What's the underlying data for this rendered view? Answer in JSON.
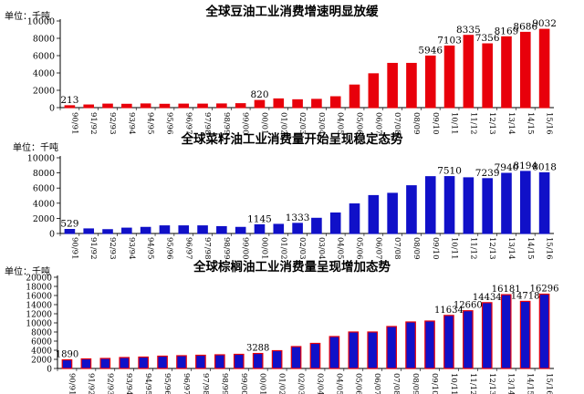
{
  "chart_data": [
    {
      "type": "bar",
      "title": "全球豆油工业消费增速明显放缓",
      "unit_label": "单位：千吨",
      "categories": [
        "90/91",
        "91/92",
        "92/93",
        "93/94",
        "94/95",
        "95/96",
        "96/97",
        "97/98",
        "98/99",
        "99/00",
        "00/01",
        "01/02",
        "02/03",
        "03/04",
        "04/05",
        "05/06",
        "06/07",
        "07/08",
        "08/09",
        "09/10",
        "10/11",
        "11/12",
        "12/13",
        "13/14",
        "14/15",
        "15/16"
      ],
      "values": [
        213,
        300,
        400,
        380,
        420,
        380,
        400,
        400,
        420,
        450,
        820,
        1000,
        900,
        950,
        1250,
        2600,
        3900,
        5100,
        5100,
        5946,
        7103,
        8335,
        7356,
        8169,
        8686,
        9032
      ],
      "data_labels": {
        "0": "213",
        "10": "820",
        "19": "5946",
        "20": "7103",
        "21": "8335",
        "22": "7356",
        "23": "8169",
        "24": "8686",
        "25": "9032"
      },
      "yticks": [
        0,
        2000,
        4000,
        6000,
        8000,
        10000
      ],
      "ylim": [
        0,
        10000
      ],
      "bar_color": "#e8000b",
      "bar_stroke": "#e8000b"
    },
    {
      "type": "bar",
      "title": "全球菜籽油工业消费量开始呈现稳定态势",
      "unit_label": "单位：千吨",
      "categories": [
        "90/91",
        "91/92",
        "92/93",
        "93/94",
        "94/95",
        "95/96",
        "96/97",
        "97/98",
        "98/99",
        "99/00",
        "00/01",
        "01/02",
        "02/03",
        "03/04",
        "04/05",
        "05/06",
        "06/07",
        "07/08",
        "08/09",
        "09/10",
        "10/11",
        "11/12",
        "12/13",
        "13/14",
        "14/15",
        "15/16"
      ],
      "values": [
        529,
        600,
        500,
        700,
        800,
        1000,
        1000,
        1000,
        900,
        800,
        1145,
        1200,
        1333,
        2000,
        2700,
        3900,
        5000,
        5300,
        6300,
        7500,
        7510,
        7350,
        7239,
        7940,
        8194,
        8018
      ],
      "data_labels": {
        "0": "529",
        "10": "1145",
        "12": "1333",
        "20": "7510",
        "22": "7239",
        "23": "7940",
        "24": "8194",
        "25": "8018"
      },
      "yticks": [
        0,
        2000,
        4000,
        6000,
        8000,
        10000
      ],
      "ylim": [
        0,
        10000
      ],
      "bar_color": "#1010c8",
      "bar_stroke": "#1010c8"
    },
    {
      "type": "bar",
      "title": "全球棕榈油工业消费量呈现增加态势",
      "unit_label": "单位：千吨",
      "categories": [
        "90/91",
        "91/92",
        "92/93",
        "93/94",
        "94/95",
        "95/96",
        "96/97",
        "97/98",
        "98/99",
        "99/00",
        "00/01",
        "01/02",
        "02/03",
        "03/04",
        "04/05",
        "05/06",
        "06/07",
        "07/08",
        "08/09",
        "09/10",
        "10/11",
        "11/12",
        "12/13",
        "13/14",
        "14/15",
        "15/16"
      ],
      "values": [
        1890,
        2100,
        2200,
        2400,
        2500,
        2700,
        2800,
        2900,
        3000,
        3100,
        3288,
        3900,
        4800,
        5500,
        7000,
        8000,
        8000,
        9200,
        10200,
        10400,
        11634,
        12660,
        14434,
        16181,
        14718,
        16296
      ],
      "data_labels": {
        "0": "1890",
        "10": "3288",
        "20": "11634",
        "21": "12660",
        "22": "14434",
        "23": "16181",
        "24": "14718",
        "25": "16296"
      },
      "yticks": [
        0,
        2000,
        4000,
        6000,
        8000,
        10000,
        12000,
        14000,
        16000,
        18000,
        20000
      ],
      "ylim": [
        0,
        20000
      ],
      "bar_color": "#1010c8",
      "bar_stroke": "#e8000b"
    }
  ]
}
